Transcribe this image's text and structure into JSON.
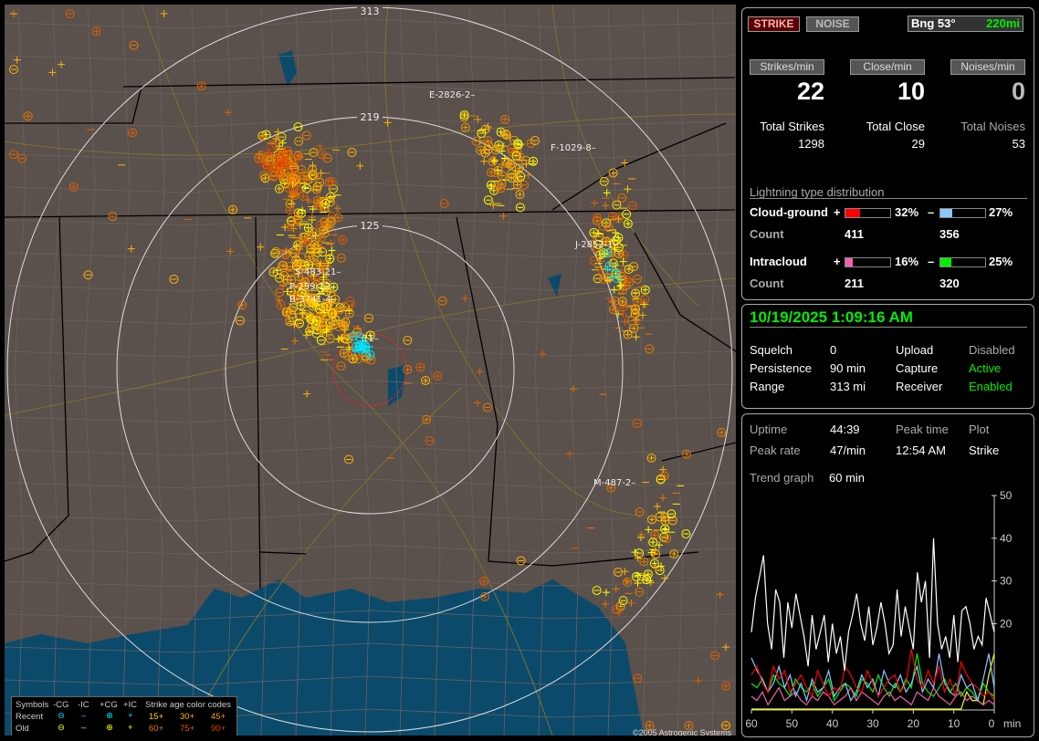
{
  "map": {
    "range_rings": [
      "125",
      "219",
      "313"
    ],
    "storm_cells": [
      {
        "label": "E-2826",
        "count": "2"
      },
      {
        "label": "F-1029",
        "count": "8"
      },
      {
        "label": "J-2852",
        "count": "1"
      },
      {
        "label": "S-483",
        "count": "21"
      },
      {
        "label": "P-259",
        "count": "12"
      },
      {
        "label": "B-3741",
        "count": "4"
      },
      {
        "label": "M-487",
        "count": "2"
      },
      {
        "label": "",
        "count": "11"
      }
    ],
    "copyright": "©2005 Astrogenic Systems",
    "colors": {
      "land": "#5a504c",
      "water": "#0b4a6b",
      "recent": "#00e5ff",
      "old": "#ffff00"
    }
  },
  "legend": {
    "symbols_label": "Symbols",
    "headers": [
      "-CG",
      "-IC",
      "+CG",
      "+IC"
    ],
    "rows": [
      "Recent",
      "Old"
    ],
    "age_title": "Strike age color codes",
    "age_codes": [
      {
        "label": "15+",
        "color": "#ffd800"
      },
      {
        "label": "30+",
        "color": "#ffb400"
      },
      {
        "label": "45+",
        "color": "#f0a000"
      },
      {
        "label": "60+",
        "color": "#e87800"
      },
      {
        "label": "75+",
        "color": "#e06000"
      },
      {
        "label": "90+",
        "color": "#d84000"
      }
    ]
  },
  "status": {
    "strike_btn": "STRIKE",
    "noise_btn": "NOISE",
    "bearing": "Bng 53°",
    "distance": "220mi",
    "rates": [
      {
        "label": "Strikes/min",
        "value": "22",
        "total_label": "Total Strikes",
        "total": "1298"
      },
      {
        "label": "Close/min",
        "value": "10",
        "total_label": "Total Close",
        "total": "29"
      },
      {
        "label": "Noises/min",
        "value": "0",
        "total_label": "Total Noises",
        "total": "53"
      }
    ],
    "distribution_title": "Lightning type distribution",
    "types": [
      {
        "name": "Cloud-ground",
        "plus_pct": 32,
        "plus_text": "32%",
        "minus_pct": 27,
        "minus_text": "27%",
        "count_label": "Count",
        "plus_count": "411",
        "minus_count": "356",
        "plus_color": "#ff0000",
        "minus_color": "#8cc8ff"
      },
      {
        "name": "Intracloud",
        "plus_pct": 16,
        "plus_text": "16%",
        "minus_pct": 25,
        "minus_text": "25%",
        "count_label": "Count",
        "plus_count": "211",
        "minus_count": "320",
        "plus_color": "#f060b0",
        "minus_color": "#00ee00"
      }
    ],
    "plus_sign": "+",
    "minus_sign": "–"
  },
  "settings": {
    "datetime": "10/19/2025 1:09:16 AM",
    "rows": [
      {
        "k1": "Squelch",
        "v1": "0",
        "k2": "Upload",
        "v2": "Disabled"
      },
      {
        "k1": "Persistence",
        "v1": "90 min",
        "k2": "Capture",
        "v2": "Active"
      },
      {
        "k1": "Range",
        "v1": "313 mi",
        "k2": "Receiver",
        "v2": "Enabled"
      }
    ]
  },
  "stats": {
    "uptime_label": "Uptime",
    "uptime": "44:39",
    "peak_time_label": "Peak time",
    "plot_label": "Plot",
    "peak_rate_label": "Peak rate",
    "peak_rate": "47/min",
    "peak_time": "12:54 AM",
    "plot": "Strike",
    "trend_label": "Trend graph",
    "trend": "60 min"
  },
  "trend_chart": {
    "x_ticks": [
      "60",
      "50",
      "40",
      "30",
      "20",
      "10",
      "0"
    ],
    "x_unit": "min",
    "y_ticks": [
      "50",
      "40",
      "30",
      "20"
    ],
    "ylim": [
      0,
      50
    ],
    "series": [
      {
        "name": "total",
        "color": "#ffffff",
        "values": [
          18,
          26,
          31,
          36,
          20,
          14,
          28,
          25,
          12,
          25,
          19,
          27,
          22,
          17,
          10,
          22,
          14,
          18,
          22,
          11,
          20,
          13,
          17,
          9,
          18,
          22,
          27,
          20,
          16,
          24,
          15,
          19,
          25,
          20,
          13,
          15,
          28,
          17,
          24,
          19,
          14,
          32,
          25,
          30,
          12,
          40,
          20,
          14,
          17,
          12,
          22,
          11,
          23,
          24,
          20,
          14,
          17,
          15,
          26,
          22,
          18
        ]
      },
      {
        "name": "cg-plus",
        "color": "#ff0000",
        "values": [
          8,
          10,
          6,
          4,
          10,
          7,
          9,
          4,
          6,
          8,
          5,
          3,
          9,
          6,
          3,
          5,
          4,
          10,
          8,
          5,
          4,
          9,
          6,
          3,
          5,
          7,
          8,
          4,
          6,
          14,
          7,
          5,
          9,
          6,
          10,
          4,
          7,
          3,
          11,
          8,
          6,
          5,
          3,
          4,
          2
        ]
      },
      {
        "name": "cg-minus",
        "color": "#8cc8ff",
        "values": [
          12,
          9,
          7,
          4,
          6,
          10,
          5,
          8,
          3,
          6,
          2,
          7,
          4,
          5,
          9,
          3,
          5,
          6,
          2,
          4,
          8,
          5,
          7,
          3,
          9,
          6,
          5,
          8,
          4,
          6,
          10,
          4,
          7,
          5,
          13,
          6,
          4,
          3,
          8,
          5,
          6,
          2,
          7,
          13,
          5
        ]
      },
      {
        "name": "ic-plus",
        "color": "#f060b0",
        "values": [
          3,
          2,
          4,
          1,
          3,
          5,
          2,
          3,
          4,
          2,
          1,
          3,
          2,
          4,
          3,
          1,
          2,
          3,
          5,
          2,
          4,
          3,
          2,
          1,
          3,
          4,
          2,
          3,
          2,
          1,
          4,
          3,
          2,
          5,
          3,
          2,
          1,
          3,
          4,
          2,
          3,
          2,
          1,
          2,
          1
        ]
      },
      {
        "name": "ic-minus",
        "color": "#00ee00",
        "values": [
          6,
          5,
          7,
          4,
          8,
          6,
          5,
          3,
          7,
          5,
          4,
          6,
          3,
          5,
          7,
          2,
          4,
          6,
          5,
          3,
          7,
          6,
          4,
          8,
          5,
          3,
          6,
          4,
          7,
          5,
          13,
          6,
          4,
          3,
          5,
          7,
          4,
          6,
          3,
          5,
          4,
          2,
          6,
          4,
          3
        ]
      },
      {
        "name": "close",
        "color": "#ffff00",
        "values": [
          0,
          0,
          0,
          0,
          0,
          0,
          0,
          0,
          0,
          0,
          0,
          0,
          0,
          0,
          0,
          0,
          0,
          0,
          0,
          0,
          0,
          0,
          0,
          0,
          0,
          0,
          0,
          0,
          0,
          0,
          0,
          0,
          0,
          0,
          0,
          0,
          0,
          0,
          0,
          4,
          2,
          2,
          1,
          8,
          13
        ]
      }
    ]
  }
}
